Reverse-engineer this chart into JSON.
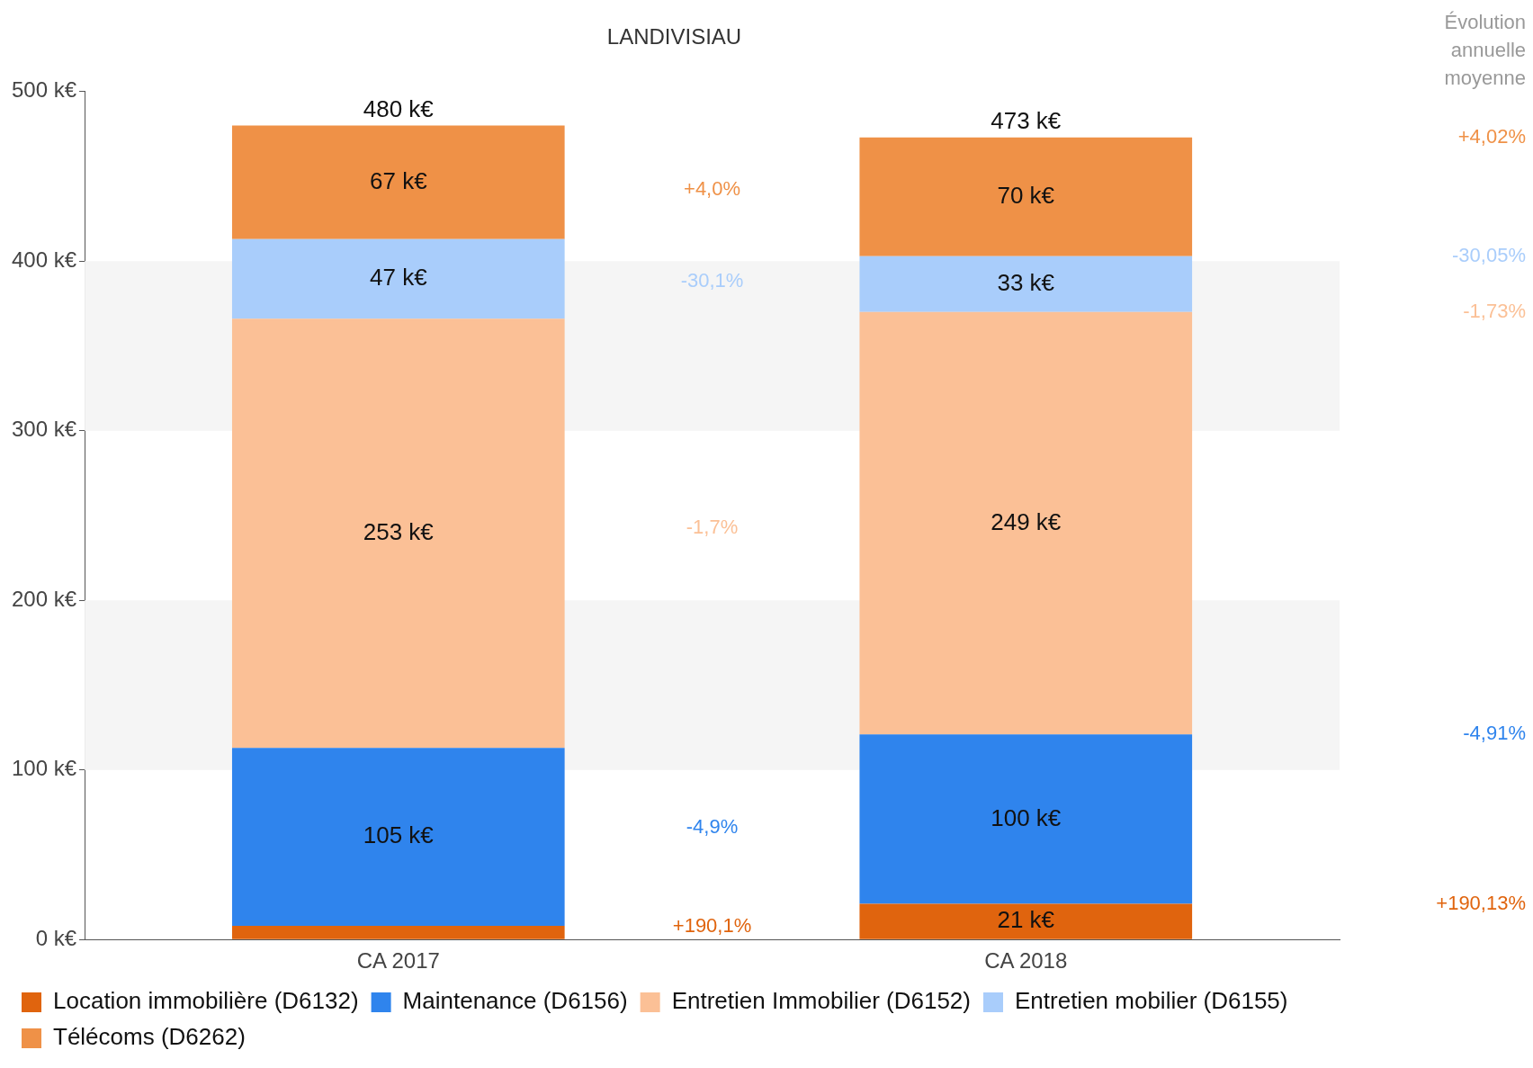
{
  "chart_data": {
    "type": "bar",
    "stacked": true,
    "title": "LANDIVISIAU",
    "categories": [
      "CA 2017",
      "CA 2018"
    ],
    "series": [
      {
        "name": "Location immobilière (D6132)",
        "color": "#e0640e",
        "values": [
          8,
          21
        ],
        "value_labels": [
          null,
          "21 k€"
        ]
      },
      {
        "name": "Maintenance (D6156)",
        "color": "#2f84ed",
        "values": [
          105,
          100
        ],
        "value_labels": [
          "105 k€",
          "100 k€"
        ]
      },
      {
        "name": "Entretien Immobilier (D6152)",
        "color": "#fbc096",
        "values": [
          253,
          249
        ],
        "value_labels": [
          "253 k€",
          "249 k€"
        ]
      },
      {
        "name": "Entretien mobilier (D6155)",
        "color": "#a9cdfb",
        "values": [
          47,
          33
        ],
        "value_labels": [
          "47 k€",
          "33 k€"
        ]
      },
      {
        "name": "Télécoms (D6262)",
        "color": "#ef9147",
        "values": [
          67,
          70
        ],
        "value_labels": [
          "67 k€",
          "70 k€"
        ]
      }
    ],
    "totals": [
      "480 k€",
      "473 k€"
    ],
    "ylim": [
      0,
      500
    ],
    "yticks": [
      {
        "value": 0,
        "label": "0 k€"
      },
      {
        "value": 100,
        "label": "100 k€"
      },
      {
        "value": 200,
        "label": "200 k€"
      },
      {
        "value": 300,
        "label": "300 k€"
      },
      {
        "value": 400,
        "label": "400 k€"
      },
      {
        "value": 500,
        "label": "500 k€"
      }
    ],
    "legend": "bottom left",
    "annotations": [
      "+190,1%",
      "-4,9%",
      "-1,7%",
      "-30,1%",
      "+4,0%",
      "Évolution annuelle moyenne",
      "+190,13%",
      "-4,91%",
      "-1,73%",
      "-30,05%",
      "+4,02%"
    ]
  }
}
